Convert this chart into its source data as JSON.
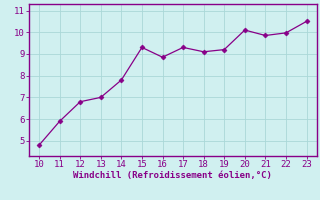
{
  "x": [
    10,
    11,
    12,
    13,
    14,
    15,
    16,
    17,
    18,
    19,
    20,
    21,
    22,
    23
  ],
  "y": [
    4.8,
    5.9,
    6.8,
    7.0,
    7.8,
    9.3,
    8.85,
    9.3,
    9.1,
    9.2,
    10.1,
    9.85,
    9.97,
    10.5
  ],
  "line_color": "#880088",
  "marker": "D",
  "marker_size": 2.5,
  "bg_color": "#d0f0f0",
  "grid_color": "#aad8d8",
  "xlabel": "Windchill (Refroidissement éolien,°C)",
  "xlabel_color": "#880088",
  "tick_color": "#880088",
  "spine_color": "#880088",
  "xlim": [
    9.5,
    23.5
  ],
  "ylim": [
    4.3,
    11.3
  ],
  "yticks": [
    5,
    6,
    7,
    8,
    9,
    10,
    11
  ],
  "xticks": [
    10,
    11,
    12,
    13,
    14,
    15,
    16,
    17,
    18,
    19,
    20,
    21,
    22,
    23
  ]
}
